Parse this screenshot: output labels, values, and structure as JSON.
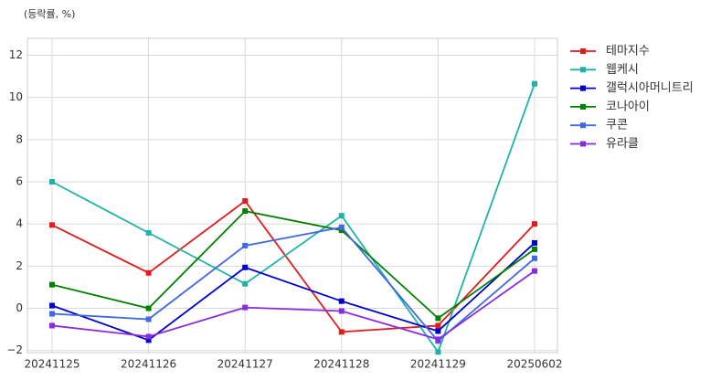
{
  "chart_data": {
    "type": "line",
    "ylabel": "(등락률, %)",
    "categories": [
      "20241125",
      "20241126",
      "20241127",
      "20241128",
      "20241129",
      "20250602"
    ],
    "series": [
      {
        "name": "테마지수",
        "color": "#e41a1c",
        "values": [
          3.95,
          1.68,
          5.09,
          -1.12,
          -0.82,
          4.0
        ]
      },
      {
        "name": "웹케시",
        "color": "#20b2aa",
        "values": [
          6.0,
          3.58,
          1.16,
          4.39,
          -2.07,
          10.65
        ]
      },
      {
        "name": "갤럭시아머니트리",
        "color": "#0000cd",
        "values": [
          0.13,
          -1.51,
          1.94,
          0.34,
          -1.08,
          3.1
        ]
      },
      {
        "name": "코나아이",
        "color": "#008000",
        "values": [
          1.12,
          0.0,
          4.61,
          3.7,
          -0.47,
          2.8
        ]
      },
      {
        "name": "쿠콘",
        "color": "#4169e1",
        "values": [
          -0.26,
          -0.52,
          2.97,
          3.84,
          -1.55,
          2.37
        ]
      },
      {
        "name": "유라클",
        "color": "#8a2be2",
        "values": [
          -0.82,
          -1.34,
          0.04,
          -0.13,
          -1.47,
          1.77
        ]
      }
    ],
    "ylim": [
      -2.1,
      12.8
    ],
    "yticks": [
      {
        "value": -2,
        "label": "−2"
      },
      0,
      2,
      4,
      6,
      8,
      10,
      12
    ],
    "grid": true,
    "legend": "outside-right"
  }
}
